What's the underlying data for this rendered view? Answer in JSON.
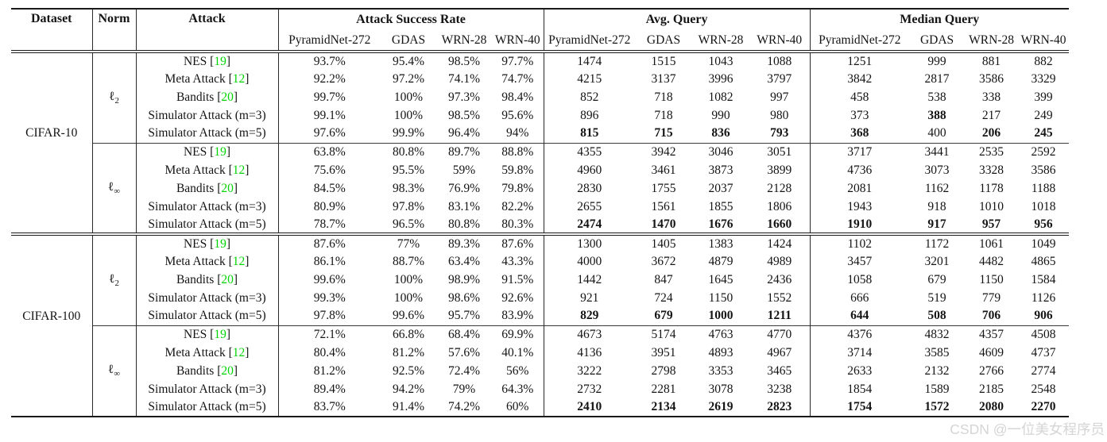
{
  "watermark": "CSDN @一位美女程序员",
  "colors": {
    "citation_green": "#00d400",
    "watermark_gray": "#d5d5d5",
    "rule_black": "#1a1a1a"
  },
  "header": {
    "dataset": "Dataset",
    "norm": "Norm",
    "attack": "Attack",
    "groups": [
      {
        "label": "Attack Success Rate"
      },
      {
        "label": "Avg. Query"
      },
      {
        "label": "Median Query"
      }
    ],
    "models": [
      "PyramidNet-272",
      "GDAS",
      "WRN-28",
      "WRN-40"
    ]
  },
  "datasets": [
    {
      "name": "CIFAR-10",
      "blocks": [
        {
          "norm_base": "ℓ",
          "norm_sub": "2",
          "rows": [
            {
              "attack": "NES",
              "cite": "19",
              "asr": [
                "93.7%",
                "95.4%",
                "98.5%",
                "97.7%"
              ],
              "avg": [
                "1474",
                "1515",
                "1043",
                "1088"
              ],
              "median": [
                "1251",
                "999",
                "881",
                "882"
              ]
            },
            {
              "attack": "Meta Attack",
              "cite": "12",
              "asr": [
                "92.2%",
                "97.2%",
                "74.1%",
                "74.7%"
              ],
              "avg": [
                "4215",
                "3137",
                "3996",
                "3797"
              ],
              "median": [
                "3842",
                "2817",
                "3586",
                "3329"
              ]
            },
            {
              "attack": "Bandits",
              "cite": "20",
              "asr": [
                "99.7%",
                "100%",
                "97.3%",
                "98.4%"
              ],
              "avg": [
                "852",
                "718",
                "1082",
                "997"
              ],
              "median": [
                "458",
                "538",
                "338",
                "399"
              ]
            },
            {
              "attack": "Simulator Attack (m=3)",
              "cite": null,
              "asr": [
                "99.1%",
                "100%",
                "98.5%",
                "95.6%"
              ],
              "avg": [
                "896",
                "718",
                "990",
                "980"
              ],
              "median": [
                "373",
                "388",
                "217",
                "249"
              ],
              "median_bold": [
                1
              ]
            },
            {
              "attack": "Simulator Attack (m=5)",
              "cite": null,
              "asr": [
                "97.6%",
                "99.9%",
                "96.4%",
                "94%"
              ],
              "avg": [
                "815",
                "715",
                "836",
                "793"
              ],
              "avg_bold": [
                0,
                1,
                2,
                3
              ],
              "median": [
                "368",
                "400",
                "206",
                "245"
              ],
              "median_bold": [
                0,
                2,
                3
              ]
            }
          ]
        },
        {
          "norm_base": "ℓ",
          "norm_sub": "∞",
          "rows": [
            {
              "attack": "NES",
              "cite": "19",
              "asr": [
                "63.8%",
                "80.8%",
                "89.7%",
                "88.8%"
              ],
              "avg": [
                "4355",
                "3942",
                "3046",
                "3051"
              ],
              "median": [
                "3717",
                "3441",
                "2535",
                "2592"
              ]
            },
            {
              "attack": "Meta Attack",
              "cite": "12",
              "asr": [
                "75.6%",
                "95.5%",
                "59%",
                "59.8%"
              ],
              "avg": [
                "4960",
                "3461",
                "3873",
                "3899"
              ],
              "median": [
                "4736",
                "3073",
                "3328",
                "3586"
              ]
            },
            {
              "attack": "Bandits",
              "cite": "20",
              "asr": [
                "84.5%",
                "98.3%",
                "76.9%",
                "79.8%"
              ],
              "avg": [
                "2830",
                "1755",
                "2037",
                "2128"
              ],
              "median": [
                "2081",
                "1162",
                "1178",
                "1188"
              ]
            },
            {
              "attack": "Simulator Attack (m=3)",
              "cite": null,
              "asr": [
                "80.9%",
                "97.8%",
                "83.1%",
                "82.2%"
              ],
              "avg": [
                "2655",
                "1561",
                "1855",
                "1806"
              ],
              "median": [
                "1943",
                "918",
                "1010",
                "1018"
              ]
            },
            {
              "attack": "Simulator Attack (m=5)",
              "cite": null,
              "asr": [
                "78.7%",
                "96.5%",
                "80.8%",
                "80.3%"
              ],
              "avg": [
                "2474",
                "1470",
                "1676",
                "1660"
              ],
              "avg_bold": [
                0,
                1,
                2,
                3
              ],
              "median": [
                "1910",
                "917",
                "957",
                "956"
              ],
              "median_bold": [
                0,
                1,
                2,
                3
              ]
            }
          ]
        }
      ]
    },
    {
      "name": "CIFAR-100",
      "blocks": [
        {
          "norm_base": "ℓ",
          "norm_sub": "2",
          "rows": [
            {
              "attack": "NES",
              "cite": "19",
              "asr": [
                "87.6%",
                "77%",
                "89.3%",
                "87.6%"
              ],
              "avg": [
                "1300",
                "1405",
                "1383",
                "1424"
              ],
              "median": [
                "1102",
                "1172",
                "1061",
                "1049"
              ]
            },
            {
              "attack": "Meta Attack",
              "cite": "12",
              "asr": [
                "86.1%",
                "88.7%",
                "63.4%",
                "43.3%"
              ],
              "avg": [
                "4000",
                "3672",
                "4879",
                "4989"
              ],
              "median": [
                "3457",
                "3201",
                "4482",
                "4865"
              ]
            },
            {
              "attack": "Bandits",
              "cite": "20",
              "asr": [
                "99.6%",
                "100%",
                "98.9%",
                "91.5%"
              ],
              "avg": [
                "1442",
                "847",
                "1645",
                "2436"
              ],
              "median": [
                "1058",
                "679",
                "1150",
                "1584"
              ]
            },
            {
              "attack": "Simulator Attack (m=3)",
              "cite": null,
              "asr": [
                "99.3%",
                "100%",
                "98.6%",
                "92.6%"
              ],
              "avg": [
                "921",
                "724",
                "1150",
                "1552"
              ],
              "median": [
                "666",
                "519",
                "779",
                "1126"
              ]
            },
            {
              "attack": "Simulator Attack (m=5)",
              "cite": null,
              "asr": [
                "97.8%",
                "99.6%",
                "95.7%",
                "83.9%"
              ],
              "avg": [
                "829",
                "679",
                "1000",
                "1211"
              ],
              "avg_bold": [
                0,
                1,
                2,
                3
              ],
              "median": [
                "644",
                "508",
                "706",
                "906"
              ],
              "median_bold": [
                0,
                1,
                2,
                3
              ]
            }
          ]
        },
        {
          "norm_base": "ℓ",
          "norm_sub": "∞",
          "rows": [
            {
              "attack": "NES",
              "cite": "19",
              "asr": [
                "72.1%",
                "66.8%",
                "68.4%",
                "69.9%"
              ],
              "avg": [
                "4673",
                "5174",
                "4763",
                "4770"
              ],
              "median": [
                "4376",
                "4832",
                "4357",
                "4508"
              ]
            },
            {
              "attack": "Meta Attack",
              "cite": "12",
              "asr": [
                "80.4%",
                "81.2%",
                "57.6%",
                "40.1%"
              ],
              "avg": [
                "4136",
                "3951",
                "4893",
                "4967"
              ],
              "median": [
                "3714",
                "3585",
                "4609",
                "4737"
              ]
            },
            {
              "attack": "Bandits",
              "cite": "20",
              "asr": [
                "81.2%",
                "92.5%",
                "72.4%",
                "56%"
              ],
              "avg": [
                "3222",
                "2798",
                "3353",
                "3465"
              ],
              "median": [
                "2633",
                "2132",
                "2766",
                "2774"
              ]
            },
            {
              "attack": "Simulator Attack (m=3)",
              "cite": null,
              "asr": [
                "89.4%",
                "94.2%",
                "79%",
                "64.3%"
              ],
              "avg": [
                "2732",
                "2281",
                "3078",
                "3238"
              ],
              "median": [
                "1854",
                "1589",
                "2185",
                "2548"
              ]
            },
            {
              "attack": "Simulator Attack (m=5)",
              "cite": null,
              "asr": [
                "83.7%",
                "91.4%",
                "74.2%",
                "60%"
              ],
              "avg": [
                "2410",
                "2134",
                "2619",
                "2823"
              ],
              "avg_bold": [
                0,
                1,
                2,
                3
              ],
              "median": [
                "1754",
                "1572",
                "2080",
                "2270"
              ],
              "median_bold": [
                0,
                1,
                2,
                3
              ]
            }
          ]
        }
      ]
    }
  ]
}
